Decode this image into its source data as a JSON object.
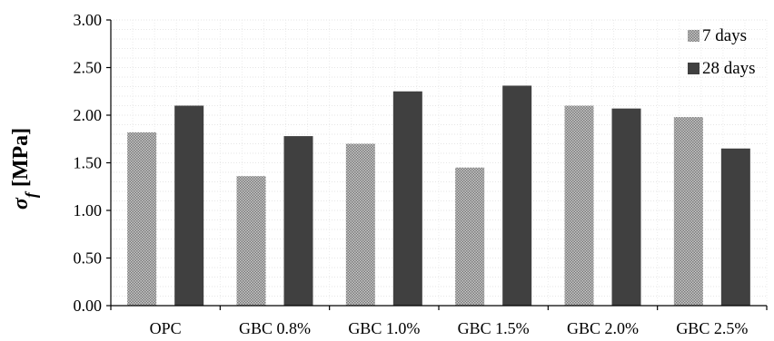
{
  "chart_data": {
    "type": "bar",
    "categories": [
      "OPC",
      "GBC 0.8%",
      "GBC 1.0%",
      "GBC 1.5%",
      "GBC 2.0%",
      "GBC 2.5%"
    ],
    "series": [
      {
        "name": "7 days",
        "values": [
          1.82,
          1.36,
          1.7,
          1.45,
          2.1,
          1.98
        ],
        "color": "#9a9a9a",
        "pattern": "checker"
      },
      {
        "name": "28 days",
        "values": [
          2.1,
          1.78,
          2.25,
          2.31,
          2.07,
          1.65
        ],
        "color": "#404040",
        "pattern": "solid"
      }
    ],
    "title": "",
    "xlabel": "",
    "ylabel_symbol": "σ",
    "ylabel_subscript": "f",
    "ylabel_unit": "[MPa]",
    "ylim": [
      0,
      3
    ],
    "yticks": [
      "0.00",
      "0.50",
      "1.00",
      "1.50",
      "2.00",
      "2.50",
      "3.00"
    ],
    "grid": "minor-dotted",
    "legend_position": "top-right"
  }
}
